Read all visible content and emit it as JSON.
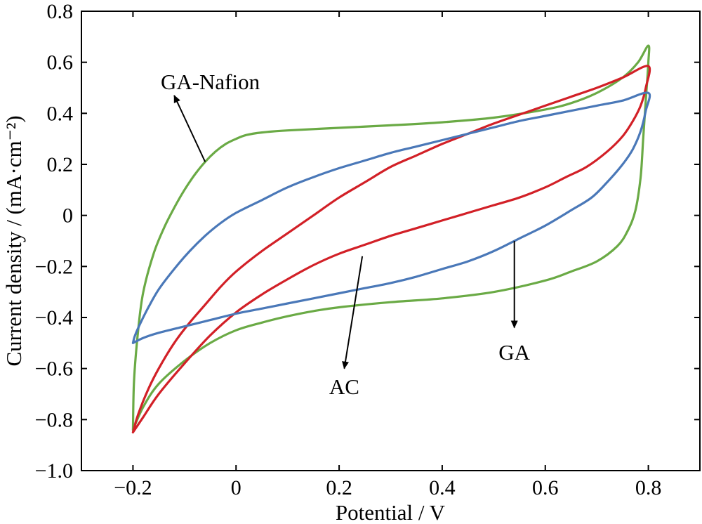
{
  "chart_data": {
    "type": "line",
    "title": "",
    "xlabel": "Potential / V",
    "ylabel": "Current density / (mA·cm⁻²)",
    "xlim": [
      -0.3,
      0.9
    ],
    "ylim": [
      -1.0,
      0.8
    ],
    "xticks": [
      -0.2,
      0,
      0.2,
      0.4,
      0.6,
      0.8
    ],
    "xtick_labels": [
      "−0.2",
      "0",
      "0.2",
      "0.4",
      "0.6",
      "0.8"
    ],
    "yticks": [
      -1.0,
      -0.8,
      -0.6,
      -0.4,
      -0.2,
      0,
      0.2,
      0.4,
      0.6,
      0.8
    ],
    "ytick_labels": [
      "−1.0",
      "−0.8",
      "−0.6",
      "−0.4",
      "−0.2",
      "0",
      "0.2",
      "0.4",
      "0.6",
      "0.8"
    ],
    "grid": false,
    "legend": "none",
    "series": [
      {
        "name": "GA-Nafion",
        "color": "#6aaa45",
        "points": [
          [
            -0.2,
            -0.84
          ],
          [
            -0.198,
            -0.65
          ],
          [
            -0.19,
            -0.45
          ],
          [
            -0.18,
            -0.3
          ],
          [
            -0.16,
            -0.15
          ],
          [
            -0.14,
            -0.05
          ],
          [
            -0.12,
            0.03
          ],
          [
            -0.1,
            0.1
          ],
          [
            -0.08,
            0.16
          ],
          [
            -0.06,
            0.21
          ],
          [
            -0.04,
            0.25
          ],
          [
            -0.02,
            0.28
          ],
          [
            0.0,
            0.3
          ],
          [
            0.02,
            0.315
          ],
          [
            0.05,
            0.325
          ],
          [
            0.1,
            0.333
          ],
          [
            0.2,
            0.343
          ],
          [
            0.3,
            0.353
          ],
          [
            0.4,
            0.365
          ],
          [
            0.5,
            0.383
          ],
          [
            0.6,
            0.415
          ],
          [
            0.65,
            0.44
          ],
          [
            0.7,
            0.48
          ],
          [
            0.75,
            0.54
          ],
          [
            0.78,
            0.6
          ],
          [
            0.8,
            0.665
          ],
          [
            0.8,
            0.6
          ],
          [
            0.795,
            0.45
          ],
          [
            0.79,
            0.3
          ],
          [
            0.785,
            0.15
          ],
          [
            0.775,
            0.02
          ],
          [
            0.76,
            -0.06
          ],
          [
            0.74,
            -0.12
          ],
          [
            0.7,
            -0.18
          ],
          [
            0.65,
            -0.22
          ],
          [
            0.6,
            -0.255
          ],
          [
            0.5,
            -0.3
          ],
          [
            0.4,
            -0.325
          ],
          [
            0.3,
            -0.34
          ],
          [
            0.2,
            -0.36
          ],
          [
            0.15,
            -0.375
          ],
          [
            0.1,
            -0.395
          ],
          [
            0.05,
            -0.42
          ],
          [
            0.0,
            -0.45
          ],
          [
            -0.05,
            -0.5
          ],
          [
            -0.1,
            -0.57
          ],
          [
            -0.15,
            -0.66
          ],
          [
            -0.18,
            -0.75
          ],
          [
            -0.2,
            -0.84
          ]
        ]
      },
      {
        "name": "AC",
        "color": "#d22027",
        "points": [
          [
            -0.2,
            -0.85
          ],
          [
            -0.19,
            -0.78
          ],
          [
            -0.17,
            -0.68
          ],
          [
            -0.15,
            -0.6
          ],
          [
            -0.12,
            -0.5
          ],
          [
            -0.09,
            -0.42
          ],
          [
            -0.06,
            -0.35
          ],
          [
            -0.03,
            -0.28
          ],
          [
            0.0,
            -0.22
          ],
          [
            0.05,
            -0.14
          ],
          [
            0.1,
            -0.07
          ],
          [
            0.15,
            0.0
          ],
          [
            0.2,
            0.07
          ],
          [
            0.25,
            0.13
          ],
          [
            0.3,
            0.19
          ],
          [
            0.35,
            0.235
          ],
          [
            0.4,
            0.28
          ],
          [
            0.45,
            0.32
          ],
          [
            0.5,
            0.36
          ],
          [
            0.55,
            0.395
          ],
          [
            0.6,
            0.43
          ],
          [
            0.65,
            0.465
          ],
          [
            0.7,
            0.5
          ],
          [
            0.75,
            0.54
          ],
          [
            0.8,
            0.585
          ],
          [
            0.795,
            0.5
          ],
          [
            0.785,
            0.43
          ],
          [
            0.77,
            0.37
          ],
          [
            0.75,
            0.31
          ],
          [
            0.72,
            0.25
          ],
          [
            0.68,
            0.19
          ],
          [
            0.64,
            0.15
          ],
          [
            0.6,
            0.11
          ],
          [
            0.55,
            0.07
          ],
          [
            0.5,
            0.04
          ],
          [
            0.45,
            0.01
          ],
          [
            0.4,
            -0.02
          ],
          [
            0.35,
            -0.05
          ],
          [
            0.3,
            -0.08
          ],
          [
            0.25,
            -0.115
          ],
          [
            0.2,
            -0.15
          ],
          [
            0.15,
            -0.195
          ],
          [
            0.1,
            -0.25
          ],
          [
            0.05,
            -0.31
          ],
          [
            0.0,
            -0.38
          ],
          [
            -0.05,
            -0.47
          ],
          [
            -0.1,
            -0.58
          ],
          [
            -0.15,
            -0.7
          ],
          [
            -0.18,
            -0.79
          ],
          [
            -0.2,
            -0.85
          ]
        ]
      },
      {
        "name": "GA",
        "color": "#4a78b8",
        "points": [
          [
            -0.2,
            -0.5
          ],
          [
            -0.196,
            -0.47
          ],
          [
            -0.185,
            -0.42
          ],
          [
            -0.17,
            -0.36
          ],
          [
            -0.15,
            -0.29
          ],
          [
            -0.12,
            -0.21
          ],
          [
            -0.09,
            -0.14
          ],
          [
            -0.06,
            -0.08
          ],
          [
            -0.03,
            -0.03
          ],
          [
            0.0,
            0.01
          ],
          [
            0.05,
            0.06
          ],
          [
            0.1,
            0.11
          ],
          [
            0.15,
            0.15
          ],
          [
            0.2,
            0.185
          ],
          [
            0.25,
            0.215
          ],
          [
            0.3,
            0.245
          ],
          [
            0.35,
            0.27
          ],
          [
            0.4,
            0.295
          ],
          [
            0.45,
            0.32
          ],
          [
            0.5,
            0.345
          ],
          [
            0.55,
            0.37
          ],
          [
            0.6,
            0.39
          ],
          [
            0.65,
            0.41
          ],
          [
            0.7,
            0.43
          ],
          [
            0.75,
            0.45
          ],
          [
            0.8,
            0.48
          ],
          [
            0.795,
            0.41
          ],
          [
            0.785,
            0.33
          ],
          [
            0.77,
            0.26
          ],
          [
            0.75,
            0.2
          ],
          [
            0.72,
            0.13
          ],
          [
            0.69,
            0.07
          ],
          [
            0.65,
            0.02
          ],
          [
            0.6,
            -0.04
          ],
          [
            0.55,
            -0.09
          ],
          [
            0.5,
            -0.14
          ],
          [
            0.45,
            -0.18
          ],
          [
            0.4,
            -0.21
          ],
          [
            0.35,
            -0.24
          ],
          [
            0.3,
            -0.265
          ],
          [
            0.25,
            -0.285
          ],
          [
            0.2,
            -0.305
          ],
          [
            0.15,
            -0.325
          ],
          [
            0.1,
            -0.345
          ],
          [
            0.05,
            -0.365
          ],
          [
            0.0,
            -0.385
          ],
          [
            -0.05,
            -0.41
          ],
          [
            -0.1,
            -0.435
          ],
          [
            -0.15,
            -0.46
          ],
          [
            -0.18,
            -0.48
          ],
          [
            -0.2,
            -0.5
          ]
        ]
      }
    ],
    "annotations": [
      {
        "text": "GA-Nafion",
        "series": "GA-Nafion",
        "arrow_from": [
          -0.06,
          0.21
        ],
        "arrow_to": [
          -0.12,
          0.47
        ],
        "label_at": [
          -0.05,
          0.525
        ]
      },
      {
        "text": "AC",
        "series": "AC",
        "arrow_from": [
          0.245,
          -0.16
        ],
        "arrow_to": [
          0.21,
          -0.6
        ],
        "label_at": [
          0.21,
          -0.67
        ]
      },
      {
        "text": "GA",
        "series": "GA",
        "arrow_from": [
          0.54,
          -0.1
        ],
        "arrow_to": [
          0.54,
          -0.44
        ],
        "label_at": [
          0.54,
          -0.535
        ]
      }
    ]
  }
}
